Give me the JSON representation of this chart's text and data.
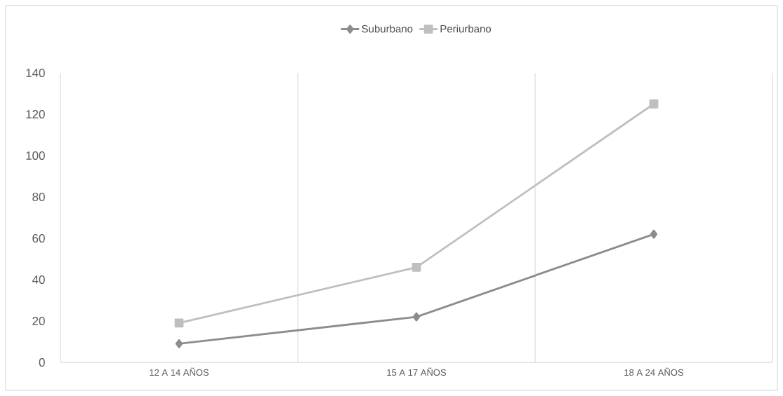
{
  "chart_data": {
    "type": "line",
    "categories": [
      "12 A 14 AÑOS",
      "15 A 17 AÑOS",
      "18 A 24 AÑOS"
    ],
    "series": [
      {
        "name": "Suburbano",
        "color": "#8c8c8c",
        "marker": "diamond",
        "values": [
          9,
          22,
          62
        ]
      },
      {
        "name": "Periurbano",
        "color": "#bfbfbf",
        "marker": "square",
        "values": [
          19,
          46,
          125
        ]
      }
    ],
    "ylim": [
      0,
      140
    ],
    "yticks": [
      0,
      20,
      40,
      60,
      80,
      100,
      120,
      140
    ],
    "grid": "x",
    "legend": "top",
    "line_style": "solid"
  }
}
